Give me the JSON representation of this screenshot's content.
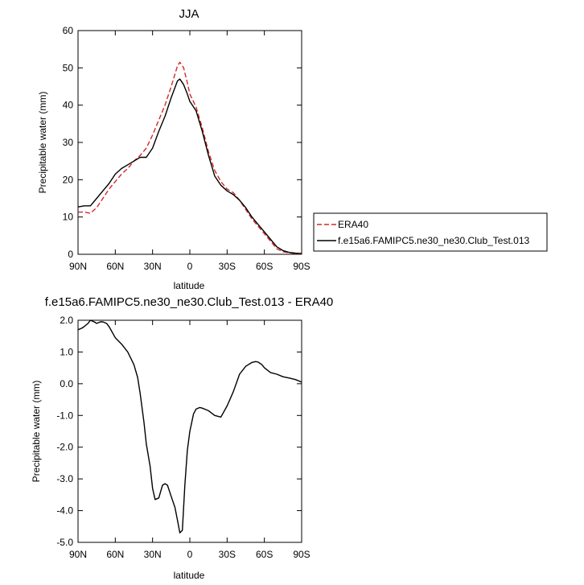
{
  "chart_data": [
    {
      "type": "line",
      "title": "JJA",
      "xlabel": "latitude",
      "ylabel": "Precipitable water (mm)",
      "xlim": [
        90,
        -90
      ],
      "ylim": [
        0,
        60
      ],
      "xticks": [
        90,
        60,
        30,
        0,
        -30,
        -60,
        -90
      ],
      "xticklabels": [
        "90N",
        "60N",
        "30N",
        "0",
        "30S",
        "60S",
        "90S"
      ],
      "yticks": [
        0,
        10,
        20,
        30,
        40,
        50,
        60
      ],
      "yticklabels": [
        "0",
        "10",
        "20",
        "30",
        "40",
        "50",
        "60"
      ],
      "legend": "outside-right",
      "series": [
        {
          "name": "ERA40",
          "color": "#d62728",
          "dash": "dashed",
          "x": [
            90,
            85,
            80,
            75,
            70,
            65,
            60,
            55,
            50,
            45,
            40,
            35,
            30,
            25,
            20,
            15,
            10,
            8,
            5,
            2,
            0,
            -5,
            -10,
            -15,
            -20,
            -25,
            -30,
            -35,
            -40,
            -45,
            -50,
            -55,
            -60,
            -65,
            -70,
            -75,
            -80,
            -85,
            -90
          ],
          "y": [
            11.3,
            11.3,
            11.0,
            12.5,
            15.0,
            17.5,
            19.5,
            21.5,
            23.0,
            25.0,
            26.5,
            28.5,
            32.0,
            36.0,
            40.0,
            45.0,
            50.5,
            51.5,
            50.0,
            46.0,
            43.0,
            39.5,
            34.0,
            27.5,
            22.5,
            19.5,
            17.5,
            16.5,
            14.5,
            12.0,
            9.5,
            7.5,
            5.5,
            3.5,
            1.5,
            0.7,
            0.4,
            0.2,
            0.1
          ]
        },
        {
          "name": "f.e15a6.FAMIPC5.ne30_ne30.Club_Test.013",
          "color": "#000000",
          "dash": "solid",
          "x": [
            90,
            85,
            80,
            75,
            70,
            65,
            60,
            55,
            50,
            45,
            40,
            35,
            30,
            25,
            20,
            15,
            10,
            8,
            5,
            2,
            0,
            -5,
            -10,
            -15,
            -20,
            -25,
            -30,
            -35,
            -40,
            -45,
            -50,
            -55,
            -60,
            -65,
            -70,
            -75,
            -80,
            -85,
            -90
          ],
          "y": [
            12.7,
            13.0,
            13.0,
            15.0,
            17.0,
            19.0,
            21.5,
            23.0,
            24.0,
            25.0,
            26.0,
            26.0,
            28.5,
            33.0,
            37.0,
            42.0,
            46.5,
            47.0,
            45.5,
            43.0,
            41.0,
            38.5,
            33.0,
            26.5,
            21.0,
            18.5,
            17.0,
            16.0,
            14.5,
            12.5,
            10.0,
            8.0,
            6.0,
            4.0,
            2.0,
            1.0,
            0.5,
            0.3,
            0.2
          ]
        }
      ]
    },
    {
      "type": "line",
      "title": "f.e15a6.FAMIPC5.ne30_ne30.Club_Test.013 - ERA40",
      "xlabel": "latitude",
      "ylabel": "Precipitable water (mm)",
      "xlim": [
        90,
        -90
      ],
      "ylim": [
        -5,
        2
      ],
      "xticks": [
        90,
        60,
        30,
        0,
        -30,
        -60,
        -90
      ],
      "xticklabels": [
        "90N",
        "60N",
        "30N",
        "0",
        "30S",
        "60S",
        "90S"
      ],
      "yticks": [
        2,
        1,
        0,
        -1,
        -2,
        -3,
        -4,
        -5
      ],
      "yticklabels": [
        "2.0",
        "1.0",
        "0.0",
        "-1.0",
        "-2.0",
        "-3.0",
        "-4.0",
        "-5.0"
      ],
      "series": [
        {
          "color": "#000000",
          "x": [
            90,
            87,
            85,
            82,
            80,
            77,
            75,
            72,
            70,
            67,
            65,
            60,
            55,
            50,
            45,
            42,
            40,
            37,
            35,
            32,
            30,
            28,
            25,
            22,
            20,
            18,
            15,
            12,
            10,
            8,
            6,
            4,
            2,
            0,
            -3,
            -5,
            -8,
            -10,
            -15,
            -20,
            -25,
            -30,
            -35,
            -40,
            -45,
            -50,
            -53,
            -55,
            -58,
            -60,
            -65,
            -70,
            -75,
            -80,
            -85,
            -90
          ],
          "y": [
            1.7,
            1.75,
            1.8,
            1.9,
            2.0,
            1.95,
            1.9,
            1.95,
            1.95,
            1.9,
            1.8,
            1.45,
            1.25,
            1.0,
            0.6,
            0.2,
            -0.3,
            -1.2,
            -1.9,
            -2.6,
            -3.3,
            -3.65,
            -3.6,
            -3.2,
            -3.15,
            -3.2,
            -3.55,
            -3.9,
            -4.3,
            -4.7,
            -4.62,
            -3.2,
            -2.1,
            -1.5,
            -0.95,
            -0.8,
            -0.75,
            -0.77,
            -0.85,
            -1.0,
            -1.05,
            -0.7,
            -0.25,
            0.3,
            0.55,
            0.67,
            0.7,
            0.68,
            0.6,
            0.5,
            0.35,
            0.3,
            0.22,
            0.18,
            0.13,
            0.05
          ]
        }
      ]
    }
  ]
}
